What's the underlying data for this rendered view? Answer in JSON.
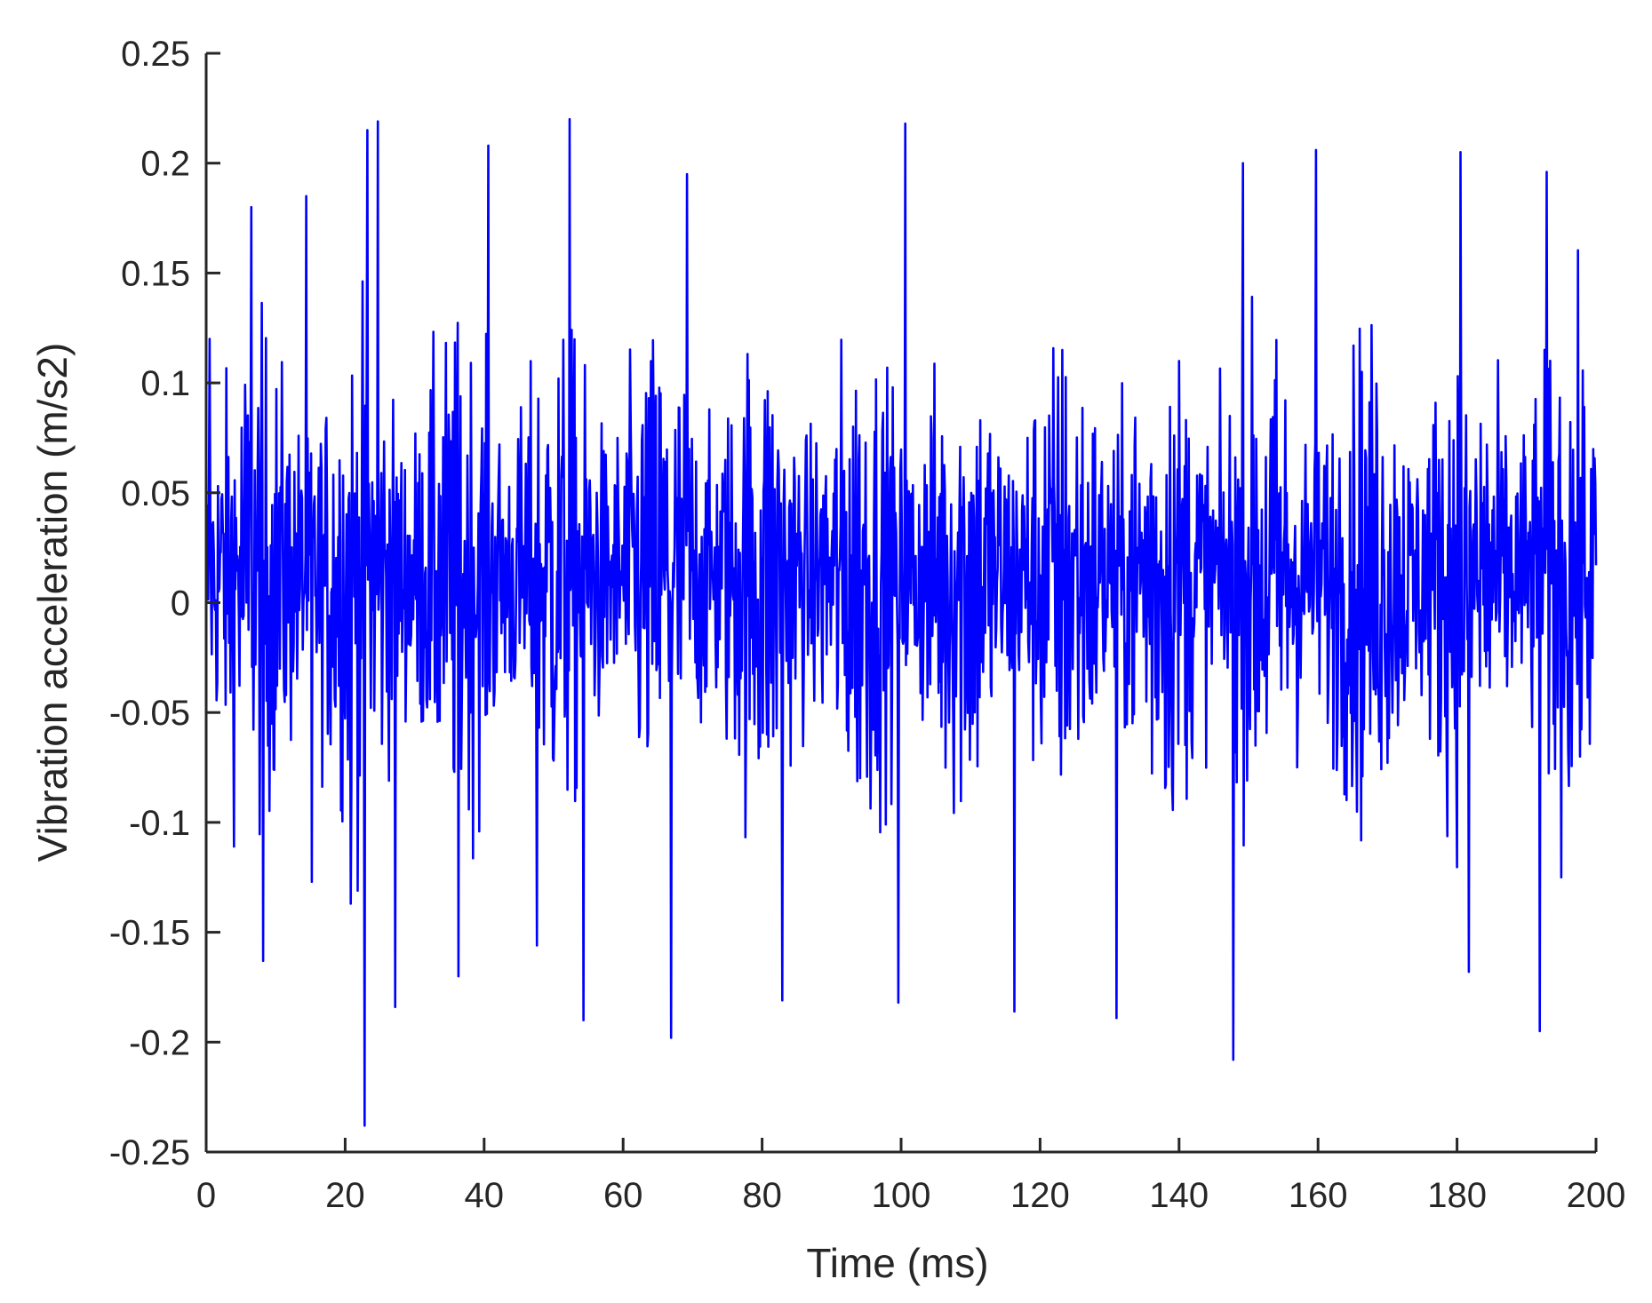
{
  "chart_data": {
    "type": "line",
    "title": "",
    "xlabel": "Time (ms)",
    "ylabel": "Vibration acceleration (m/s2)",
    "xlim": [
      0,
      200
    ],
    "ylim": [
      -0.25,
      0.25
    ],
    "xticks": [
      0,
      20,
      40,
      60,
      80,
      100,
      120,
      140,
      160,
      180,
      200
    ],
    "yticks": [
      0.25,
      0.2,
      0.15,
      0.1,
      0.05,
      0,
      -0.05,
      -0.1,
      -0.15,
      -0.2,
      -0.25
    ],
    "xtick_labels": [
      "0",
      "20",
      "40",
      "60",
      "80",
      "100",
      "120",
      "140",
      "160",
      "180",
      "200"
    ],
    "ytick_labels": [
      "0.25",
      "0.2",
      "0.15",
      "0.1",
      "0.05",
      "0",
      "-0.05",
      "-0.1",
      "-0.15",
      "-0.2",
      "-0.25"
    ],
    "grid": false,
    "legend": "none",
    "colors": {
      "series": "#0000ff",
      "axis": "#262626"
    },
    "series": [
      {
        "points_notable": [
          {
            "x": 0.5,
            "y": 0.12
          },
          {
            "x": 6.5,
            "y": 0.18
          },
          {
            "x": 8.2,
            "y": -0.163
          },
          {
            "x": 14.4,
            "y": 0.185
          },
          {
            "x": 15.2,
            "y": -0.127
          },
          {
            "x": 20.8,
            "y": -0.137
          },
          {
            "x": 23.2,
            "y": 0.215
          },
          {
            "x": 22.8,
            "y": -0.238
          },
          {
            "x": 24.7,
            "y": 0.219
          },
          {
            "x": 27.2,
            "y": -0.184
          },
          {
            "x": 36.3,
            "y": -0.17
          },
          {
            "x": 40.6,
            "y": 0.208
          },
          {
            "x": 47.6,
            "y": -0.156
          },
          {
            "x": 52.3,
            "y": 0.22
          },
          {
            "x": 54.3,
            "y": -0.19
          },
          {
            "x": 66.9,
            "y": -0.198
          },
          {
            "x": 69.2,
            "y": 0.195
          },
          {
            "x": 82.9,
            "y": -0.181
          },
          {
            "x": 99.6,
            "y": -0.182
          },
          {
            "x": 100.6,
            "y": 0.218
          },
          {
            "x": 116.3,
            "y": -0.186
          },
          {
            "x": 131.0,
            "y": -0.189
          },
          {
            "x": 147.8,
            "y": -0.208
          },
          {
            "x": 149.2,
            "y": 0.2
          },
          {
            "x": 159.7,
            "y": 0.206
          },
          {
            "x": 180.5,
            "y": 0.205
          },
          {
            "x": 181.7,
            "y": -0.168
          },
          {
            "x": 191.9,
            "y": -0.195
          },
          {
            "x": 192.9,
            "y": 0.196
          },
          {
            "x": 200.0,
            "y": 0.017
          }
        ],
        "peak_max": 0.22,
        "peak_min": -0.238,
        "modulation_period_ms": 14.5
      }
    ]
  }
}
